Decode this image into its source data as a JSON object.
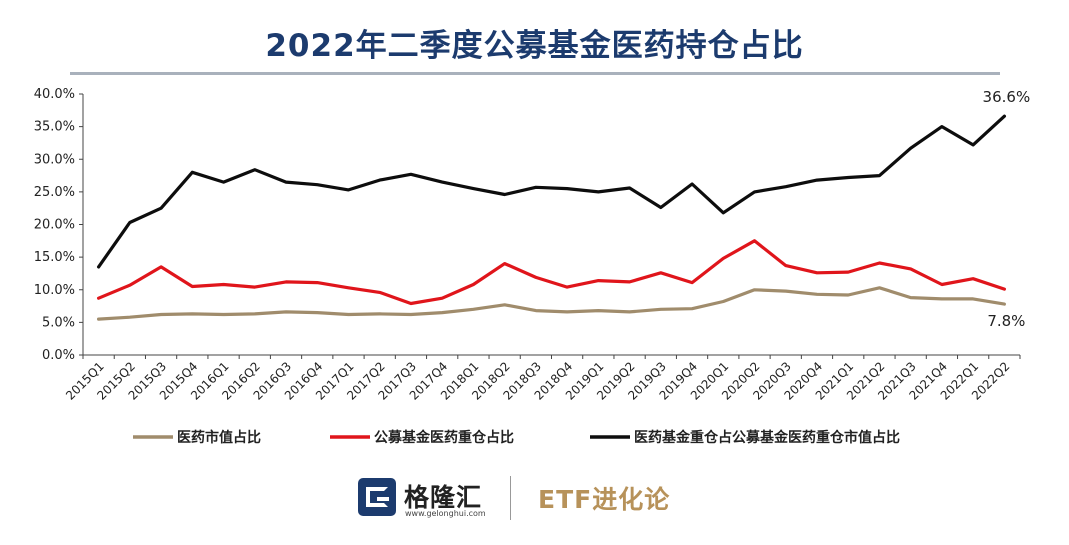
{
  "chart_data": {
    "type": "line",
    "title": "2022年二季度公募基金医药持仓占比",
    "categories": [
      "2015Q1",
      "2015Q2",
      "2015Q3",
      "2015Q4",
      "2016Q1",
      "2016Q2",
      "2016Q3",
      "2016Q4",
      "2017Q1",
      "2017Q2",
      "2017Q3",
      "2017Q4",
      "2018Q1",
      "2018Q2",
      "2018Q3",
      "2018Q4",
      "2019Q1",
      "2019Q2",
      "2019Q3",
      "2019Q4",
      "2020Q1",
      "2020Q2",
      "2020Q3",
      "2020Q4",
      "2021Q1",
      "2021Q2",
      "2021Q3",
      "2021Q4",
      "2022Q1",
      "2022Q2"
    ],
    "yticks": [
      "0.0%",
      "5.0%",
      "10.0%",
      "15.0%",
      "20.0%",
      "25.0%",
      "30.0%",
      "35.0%",
      "40.0%"
    ],
    "ylim": [
      0,
      40
    ],
    "grid": false,
    "legend_position": "bottom",
    "series": [
      {
        "name": "医药市值占比",
        "color": "#a08c6c",
        "values": [
          5.5,
          5.8,
          6.2,
          6.3,
          6.2,
          6.3,
          6.6,
          6.5,
          6.2,
          6.3,
          6.2,
          6.5,
          7.0,
          7.7,
          6.8,
          6.6,
          6.8,
          6.6,
          7.0,
          7.1,
          8.2,
          10.0,
          9.8,
          9.3,
          9.2,
          10.3,
          8.8,
          8.6,
          8.6,
          7.8
        ]
      },
      {
        "name": "公募基金医药重仓占比",
        "color": "#e0151b",
        "values": [
          8.7,
          10.7,
          13.5,
          10.5,
          10.8,
          10.4,
          11.2,
          11.1,
          10.3,
          9.6,
          7.9,
          8.7,
          10.8,
          14.0,
          11.9,
          10.4,
          11.4,
          11.2,
          12.6,
          11.1,
          14.8,
          17.5,
          13.7,
          12.6,
          12.7,
          14.1,
          13.2,
          10.8,
          11.7,
          10.1
        ]
      },
      {
        "name": "医药基金重仓占公募基金医药重仓市值占比",
        "color": "#0d0d0d",
        "values": [
          13.5,
          20.3,
          22.5,
          28.0,
          26.5,
          28.4,
          26.5,
          26.1,
          25.3,
          26.8,
          27.7,
          26.5,
          25.5,
          24.6,
          25.7,
          25.5,
          25.0,
          25.6,
          22.6,
          26.2,
          21.8,
          25.0,
          25.8,
          26.8,
          27.2,
          27.5,
          31.7,
          35.0,
          32.2,
          36.6
        ]
      }
    ],
    "annotations": [
      {
        "text": "36.6%",
        "series": 2,
        "index": 29
      },
      {
        "text": "7.8%",
        "series": 0,
        "index": 29
      }
    ]
  },
  "footer": {
    "logo_name": "格隆汇",
    "logo_url": "www.gelonghui.com",
    "brand": "ETF进化论"
  }
}
